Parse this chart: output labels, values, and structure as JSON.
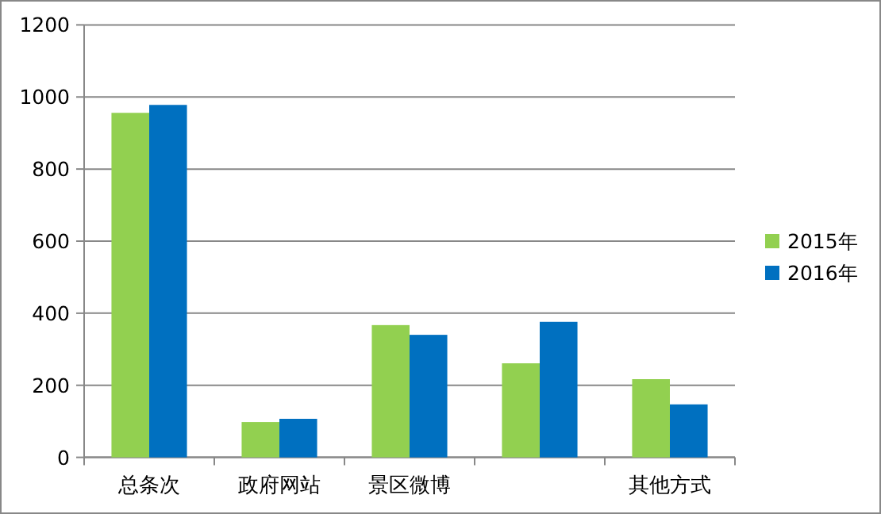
{
  "chart_data": {
    "type": "bar",
    "categories": [
      "总条次",
      "政府网站",
      "景区微博",
      null,
      "其他方式"
    ],
    "series": [
      {
        "name": "2015年",
        "color": "#92d050",
        "values": [
          956,
          98,
          367,
          261,
          217
        ]
      },
      {
        "name": "2016年",
        "color": "#0070c0",
        "values": [
          978,
          107,
          340,
          376,
          147
        ]
      }
    ],
    "ylim": [
      0,
      1200
    ],
    "yticks": [
      0,
      200,
      400,
      600,
      800,
      1000,
      1200
    ],
    "grid": "y",
    "legend": "right"
  }
}
